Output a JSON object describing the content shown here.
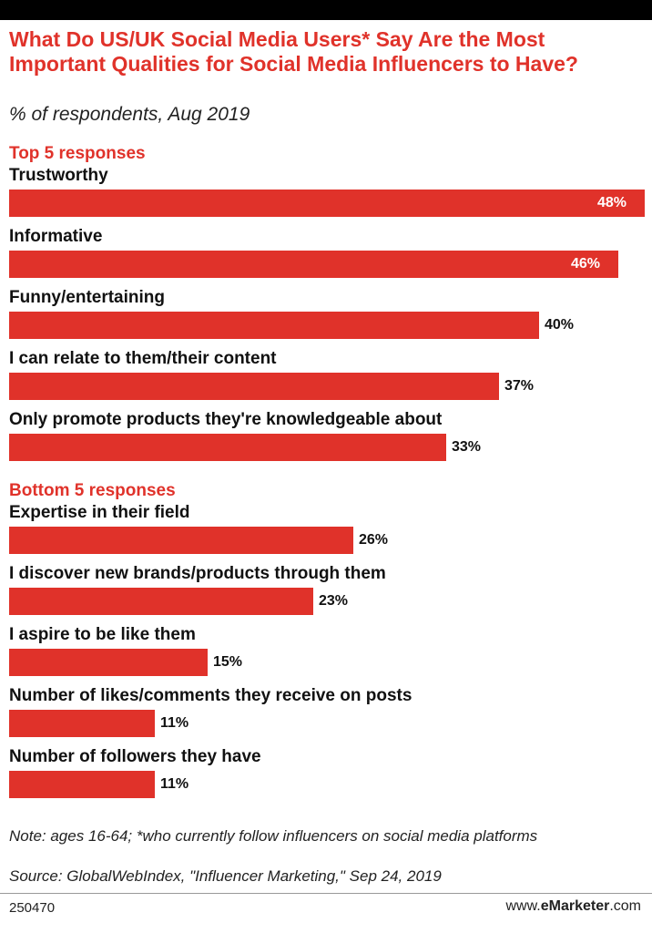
{
  "chart_data": {
    "type": "bar",
    "orientation": "horizontal",
    "title": "What Do US/UK Social Media Users* Say Are the Most Important Qualities for Social Media Influencers to Have?",
    "subtitle": "% of respondents, Aug 2019",
    "unit": "%",
    "xlim": [
      0,
      48
    ],
    "groups": [
      {
        "name": "Top 5 responses",
        "categories": [
          "Trustworthy",
          "Informative",
          "Funny/entertaining",
          "I can relate to them/their content",
          "Only promote products they're knowledgeable about"
        ],
        "values": [
          48,
          46,
          40,
          37,
          33
        ],
        "value_labels": [
          "48%",
          "46%",
          "40%",
          "37%",
          "33%"
        ]
      },
      {
        "name": "Bottom 5 responses",
        "categories": [
          "Expertise in their field",
          "I discover new brands/products through them",
          "I aspire to be like them",
          "Number of likes/comments they receive on posts",
          "Number of followers they have"
        ],
        "values": [
          26,
          23,
          15,
          11,
          11
        ],
        "value_labels": [
          "26%",
          "23%",
          "15%",
          "11%",
          "11%"
        ]
      }
    ]
  },
  "footer": {
    "note": "Note: ages 16-64; *who currently follow influencers on social media platforms",
    "source": "Source: GlobalWebIndex, \"Influencer Marketing,\" Sep 24, 2019",
    "chart_id": "250470",
    "brand_prefix": "www.",
    "brand_strong": "eMarketer",
    "brand_suffix": ".com"
  },
  "colors": {
    "accent": "#e0322a",
    "text": "#111111",
    "background": "#ffffff"
  }
}
